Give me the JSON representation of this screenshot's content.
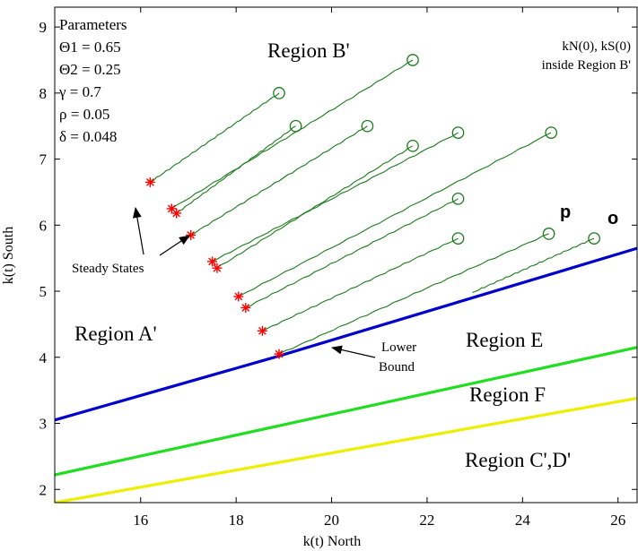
{
  "chart_data": {
    "type": "line",
    "title": "",
    "xlabel": "k(t) North",
    "ylabel": "k(t) South",
    "xlim": [
      14.2,
      26.4
    ],
    "ylim": [
      1.8,
      9.3
    ],
    "x_ticks": [
      16,
      18,
      20,
      22,
      24,
      26
    ],
    "y_ticks": [
      2,
      3,
      4,
      5,
      6,
      7,
      8,
      9
    ],
    "grid": false,
    "colors": {
      "boundary_lower": "#0000cc",
      "boundary_e": "#22dd22",
      "boundary_f": "#eeee00",
      "trajectory": "#1a7a1a",
      "steady_state": "#ff0000"
    },
    "boundaries": [
      {
        "name": "Lower Bound",
        "points": [
          [
            14.2,
            3.05
          ],
          [
            18.9,
            4.02
          ],
          [
            26.4,
            5.65
          ]
        ]
      },
      {
        "name": "Region E/F boundary",
        "points": [
          [
            14.2,
            2.22
          ],
          [
            26.4,
            4.15
          ]
        ]
      },
      {
        "name": "Region F/C'D' boundary",
        "points": [
          [
            14.2,
            1.8
          ],
          [
            26.4,
            3.38
          ]
        ]
      }
    ],
    "trajectories": [
      {
        "start": [
          16.2,
          6.65
        ],
        "end": [
          18.9,
          8.0
        ]
      },
      {
        "start": [
          16.65,
          6.25
        ],
        "end": [
          21.7,
          8.5
        ]
      },
      {
        "start": [
          16.75,
          6.18
        ],
        "end": [
          19.25,
          7.5
        ]
      },
      {
        "start": [
          17.05,
          5.85
        ],
        "end": [
          20.75,
          7.5
        ]
      },
      {
        "start": [
          17.5,
          5.45
        ],
        "end": [
          22.65,
          7.4
        ]
      },
      {
        "start": [
          17.6,
          5.35
        ],
        "end": [
          21.7,
          7.2
        ]
      },
      {
        "start": [
          18.05,
          4.92
        ],
        "end": [
          24.6,
          7.4
        ]
      },
      {
        "start": [
          18.2,
          4.75
        ],
        "end": [
          22.65,
          6.4
        ]
      },
      {
        "start": [
          18.55,
          4.4
        ],
        "end": [
          22.65,
          5.8
        ]
      },
      {
        "start": [
          18.9,
          4.05
        ],
        "end": [
          24.55,
          5.87
        ]
      },
      {
        "start": [
          22.95,
          4.98
        ],
        "end": [
          25.5,
          5.8
        ]
      }
    ],
    "steady_state_markers": [
      [
        16.2,
        6.65
      ],
      [
        16.65,
        6.25
      ],
      [
        16.75,
        6.18
      ],
      [
        17.05,
        5.85
      ],
      [
        17.5,
        5.45
      ],
      [
        17.6,
        5.35
      ],
      [
        18.05,
        4.92
      ],
      [
        18.2,
        4.75
      ],
      [
        18.55,
        4.4
      ],
      [
        18.9,
        4.05
      ]
    ],
    "annotations": {
      "region_b": "Region B'",
      "region_a": "Region A'",
      "region_e": "Region E",
      "region_f": "Region F",
      "region_cd": "Region C',D'",
      "steady_states": "Steady States",
      "lower_bound_line1": "Lower",
      "lower_bound_line2": "Bound",
      "init_line1": "kN(0), kS(0)",
      "init_line2": "inside Region B'",
      "label_p": "p",
      "label_o": "o"
    },
    "parameters": [
      "Parameters",
      "Θ1  = 0.65",
      "Θ2  = 0.25",
      "γ  = 0.7",
      "ρ  = 0.05",
      "δ  = 0.048"
    ]
  }
}
